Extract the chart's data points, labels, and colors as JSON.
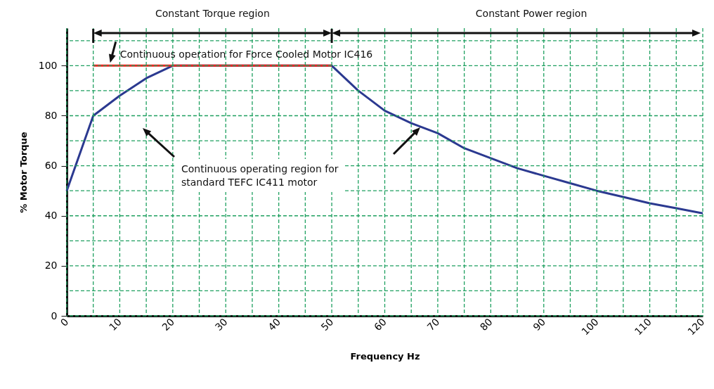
{
  "chart_data": {
    "type": "line",
    "xlabel": "Frequency Hz",
    "ylabel": "% Motor Torque",
    "x": [
      0,
      5,
      10,
      15,
      20,
      50,
      55,
      60,
      65,
      70,
      75,
      80,
      85,
      90,
      95,
      100,
      105,
      110,
      115,
      120
    ],
    "series": [
      {
        "color": "#2b3990",
        "values": [
          50,
          80,
          88,
          95,
          100,
          100,
          90,
          82,
          77,
          73,
          67,
          63,
          59,
          56,
          53,
          50,
          47.5,
          45,
          43,
          41
        ]
      },
      {
        "color": "#e8251f",
        "x": [
          5,
          50
        ],
        "values": [
          100,
          100
        ]
      }
    ],
    "xlim": [
      0,
      120
    ],
    "ylim": [
      0,
      115
    ],
    "xticks": [
      0,
      {
        "value": 5,
        "label": null
      },
      10,
      {
        "value": 15,
        "label": null
      },
      20,
      {
        "value": 25,
        "label": null
      },
      30,
      {
        "value": 35,
        "label": null
      },
      40,
      {
        "value": 45,
        "label": null
      },
      50,
      {
        "value": 55,
        "label": null
      },
      60,
      {
        "value": 65,
        "label": null
      },
      70,
      {
        "value": 75,
        "label": null
      },
      80,
      {
        "value": 85,
        "label": null
      },
      90,
      {
        "value": 95,
        "label": null
      },
      100,
      {
        "value": 105,
        "label": null
      },
      110,
      {
        "value": 115,
        "label": null
      },
      120
    ],
    "yticks": [
      0,
      {
        "value": 10,
        "label": null
      },
      20,
      {
        "value": 30,
        "label": null
      },
      40,
      {
        "value": 50,
        "label": null
      },
      60,
      {
        "value": 70,
        "label": null
      },
      80,
      {
        "value": 90,
        "label": null
      },
      100,
      {
        "value": 110,
        "label": null
      }
    ],
    "grid": true,
    "marker": "none",
    "line_style": "solid",
    "annotations": [
      "Constant Torque region",
      "Constant Power region",
      "Continuous operation for Force Cooled Motor IC416",
      "Continuous operating region for\nstandard TEFC IC411 motor"
    ]
  }
}
